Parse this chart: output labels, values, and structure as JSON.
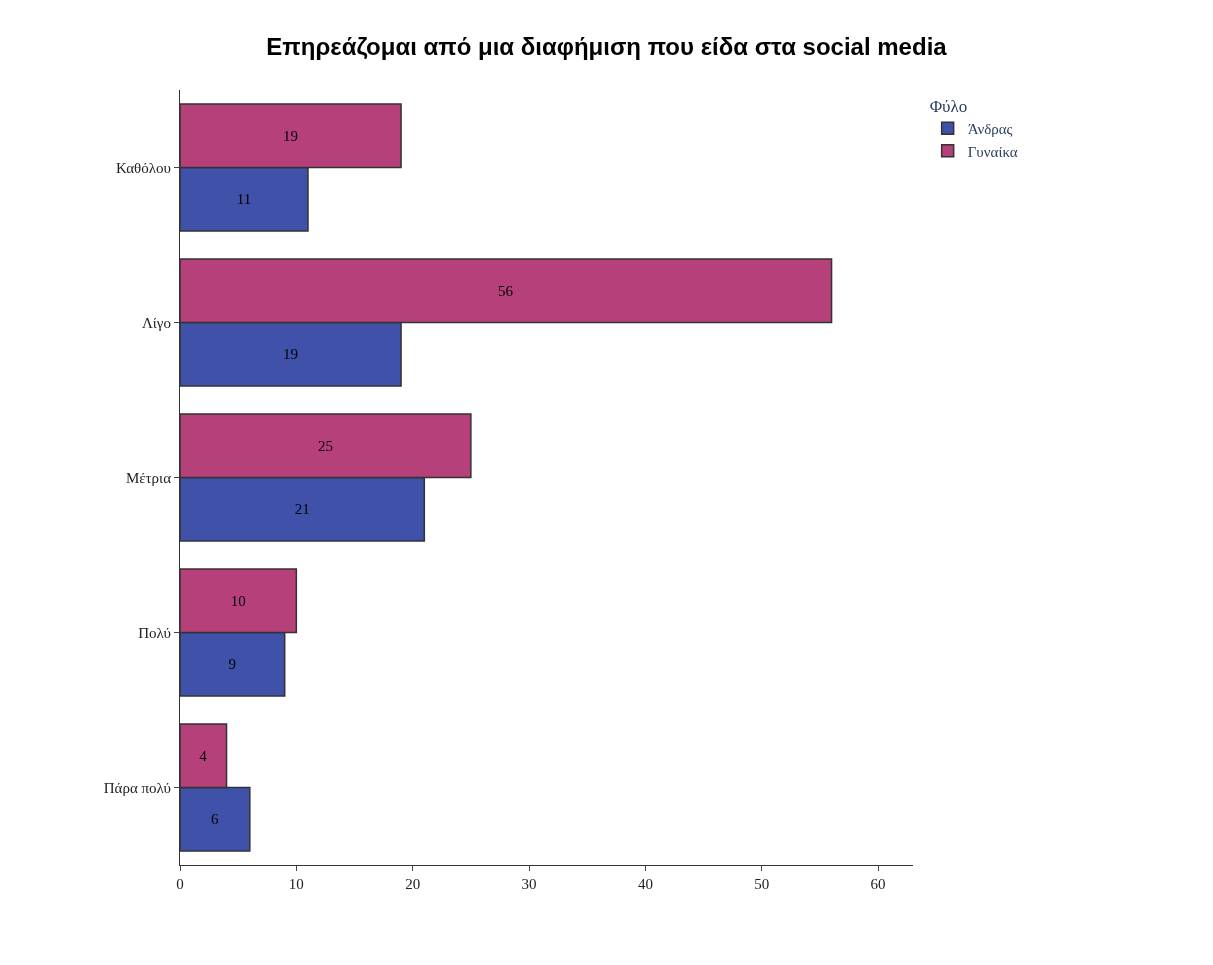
{
  "chart_data": {
    "type": "bar",
    "orientation": "horizontal",
    "title": "Επηρεάζομαι από μια διαφήμιση που είδα στα social media",
    "legend_title": "Φύλο",
    "categories": [
      "Καθόλου",
      "Λίγο",
      "Μέτρια",
      "Πολύ",
      "Πάρα πολύ"
    ],
    "series": [
      {
        "name": "Άνδρας",
        "color": "#3f51a8",
        "values": [
          11,
          19,
          21,
          9,
          6
        ]
      },
      {
        "name": "Γυναίκα",
        "color": "#b5407a",
        "values": [
          19,
          56,
          25,
          10,
          4
        ]
      }
    ],
    "xlim": [
      0,
      63
    ],
    "xticks": [
      0,
      10,
      20,
      30,
      40,
      50,
      60
    ],
    "legend": "top right",
    "data_labels": true
  }
}
